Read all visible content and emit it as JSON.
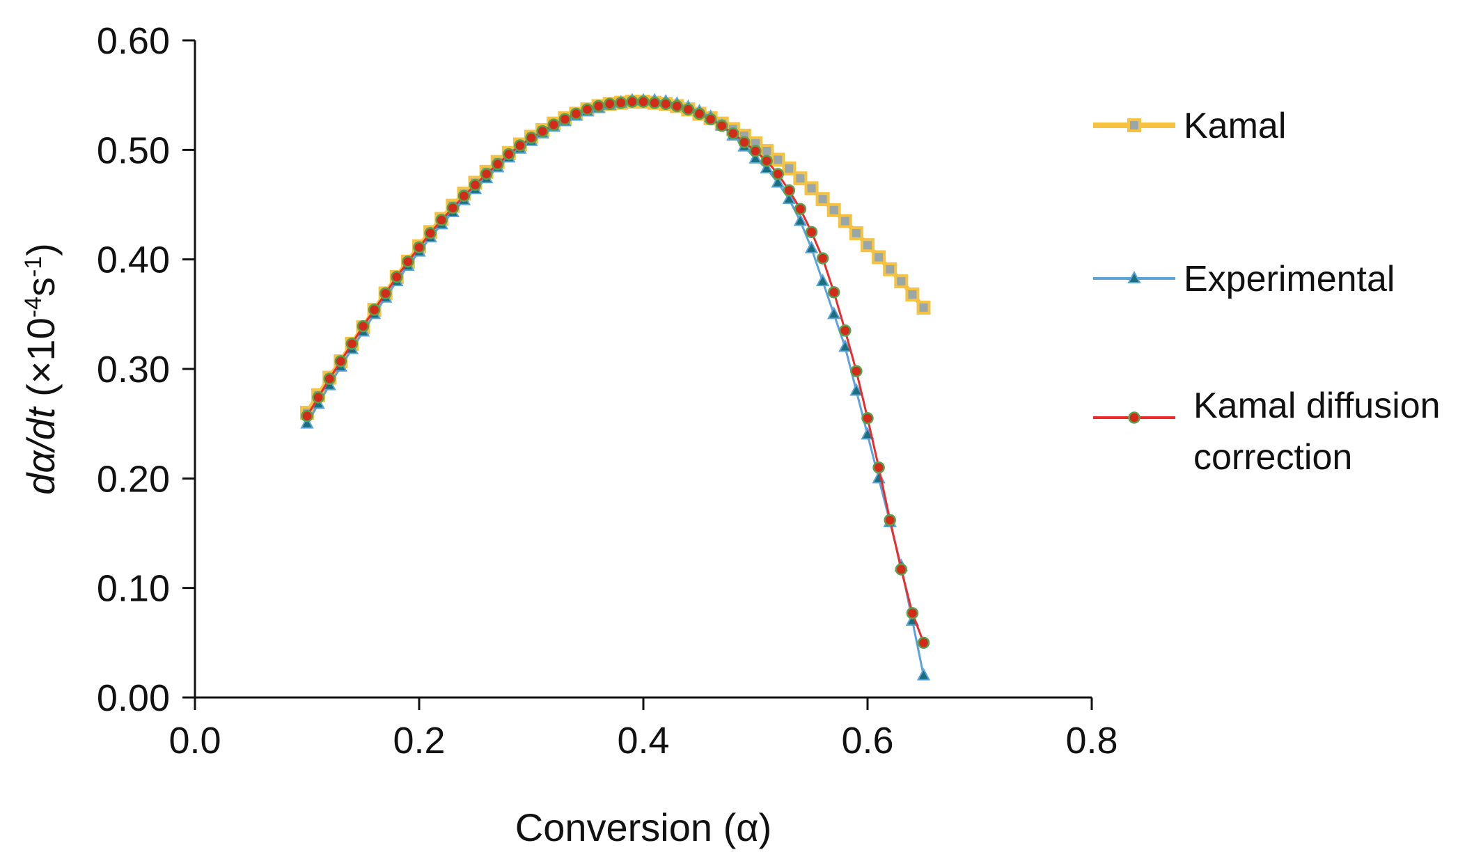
{
  "chart_data": {
    "type": "line",
    "title": "",
    "xlabel": "Conversion (α)",
    "ylabel": {
      "main": "dα/dt",
      "unit_open": " (×10",
      "exp1": "-4",
      "unit_mid": "s",
      "exp2": "-1",
      "unit_close": ")"
    },
    "xlim": [
      0,
      0.8
    ],
    "ylim": [
      0,
      0.6
    ],
    "xticks": [
      0,
      0.2,
      0.4,
      0.6,
      0.8
    ],
    "xtick_labels": [
      "0.0",
      "0.2",
      "0.4",
      "0.6",
      "0.8"
    ],
    "yticks": [
      0,
      0.1,
      0.2,
      0.3,
      0.4,
      0.5,
      0.6
    ],
    "ytick_labels": [
      "0.00",
      "0.10",
      "0.20",
      "0.30",
      "0.40",
      "0.50",
      "0.60"
    ],
    "grid": false,
    "legend_position": "right",
    "series": [
      {
        "name": "Kamal",
        "color": "#f5c242",
        "marker": "square",
        "marker_color": "#9aa7a8",
        "x": [
          0.1,
          0.11,
          0.12,
          0.13,
          0.14,
          0.15,
          0.16,
          0.17,
          0.18,
          0.19,
          0.2,
          0.21,
          0.22,
          0.23,
          0.24,
          0.25,
          0.26,
          0.27,
          0.28,
          0.29,
          0.3,
          0.31,
          0.32,
          0.33,
          0.34,
          0.35,
          0.36,
          0.37,
          0.38,
          0.39,
          0.4,
          0.41,
          0.42,
          0.43,
          0.44,
          0.45,
          0.46,
          0.47,
          0.48,
          0.49,
          0.5,
          0.51,
          0.52,
          0.53,
          0.54,
          0.55,
          0.56,
          0.57,
          0.58,
          0.59,
          0.6,
          0.61,
          0.62,
          0.63,
          0.64,
          0.65
        ],
        "y": [
          0.26,
          0.276,
          0.292,
          0.307,
          0.323,
          0.338,
          0.354,
          0.369,
          0.384,
          0.398,
          0.412,
          0.425,
          0.437,
          0.449,
          0.46,
          0.47,
          0.48,
          0.489,
          0.497,
          0.505,
          0.512,
          0.518,
          0.524,
          0.529,
          0.533,
          0.537,
          0.54,
          0.542,
          0.543,
          0.544,
          0.544,
          0.543,
          0.542,
          0.54,
          0.537,
          0.533,
          0.529,
          0.524,
          0.519,
          0.513,
          0.506,
          0.499,
          0.491,
          0.483,
          0.474,
          0.465,
          0.455,
          0.445,
          0.435,
          0.424,
          0.413,
          0.402,
          0.391,
          0.38,
          0.368,
          0.356
        ]
      },
      {
        "name": "Experimental",
        "color": "#5ba3dc",
        "marker": "triangle",
        "marker_color": "#1a6f7c",
        "x": [
          0.1,
          0.11,
          0.12,
          0.13,
          0.14,
          0.15,
          0.16,
          0.17,
          0.18,
          0.19,
          0.2,
          0.21,
          0.22,
          0.23,
          0.24,
          0.25,
          0.26,
          0.27,
          0.28,
          0.29,
          0.3,
          0.31,
          0.32,
          0.33,
          0.34,
          0.35,
          0.36,
          0.37,
          0.38,
          0.39,
          0.4,
          0.41,
          0.42,
          0.43,
          0.44,
          0.45,
          0.46,
          0.47,
          0.48,
          0.49,
          0.5,
          0.51,
          0.52,
          0.53,
          0.54,
          0.55,
          0.56,
          0.57,
          0.58,
          0.59,
          0.6,
          0.61,
          0.62,
          0.63,
          0.64,
          0.65
        ],
        "y": [
          0.25,
          0.268,
          0.285,
          0.302,
          0.318,
          0.334,
          0.35,
          0.365,
          0.38,
          0.394,
          0.407,
          0.42,
          0.432,
          0.443,
          0.454,
          0.464,
          0.474,
          0.484,
          0.493,
          0.501,
          0.508,
          0.515,
          0.521,
          0.526,
          0.531,
          0.535,
          0.538,
          0.541,
          0.543,
          0.545,
          0.545,
          0.545,
          0.544,
          0.542,
          0.539,
          0.535,
          0.53,
          0.522,
          0.513,
          0.503,
          0.492,
          0.483,
          0.47,
          0.455,
          0.435,
          0.41,
          0.38,
          0.35,
          0.32,
          0.28,
          0.24,
          0.2,
          0.16,
          0.12,
          0.07,
          0.02
        ]
      },
      {
        "name": "Kamal diffusion correction",
        "color": "#ee2b2b",
        "marker": "circle",
        "marker_color": "#d42a1a",
        "x": [
          0.1,
          0.11,
          0.12,
          0.13,
          0.14,
          0.15,
          0.16,
          0.17,
          0.18,
          0.19,
          0.2,
          0.21,
          0.22,
          0.23,
          0.24,
          0.25,
          0.26,
          0.27,
          0.28,
          0.29,
          0.3,
          0.31,
          0.32,
          0.33,
          0.34,
          0.35,
          0.36,
          0.37,
          0.38,
          0.39,
          0.4,
          0.41,
          0.42,
          0.43,
          0.44,
          0.45,
          0.46,
          0.47,
          0.48,
          0.49,
          0.5,
          0.51,
          0.52,
          0.53,
          0.54,
          0.55,
          0.56,
          0.57,
          0.58,
          0.59,
          0.6,
          0.61,
          0.62,
          0.63,
          0.64,
          0.65
        ],
        "y": [
          0.257,
          0.274,
          0.291,
          0.307,
          0.323,
          0.339,
          0.354,
          0.369,
          0.384,
          0.398,
          0.411,
          0.424,
          0.436,
          0.447,
          0.458,
          0.468,
          0.478,
          0.487,
          0.496,
          0.504,
          0.511,
          0.517,
          0.523,
          0.528,
          0.533,
          0.537,
          0.54,
          0.542,
          0.543,
          0.544,
          0.544,
          0.543,
          0.542,
          0.54,
          0.537,
          0.533,
          0.528,
          0.522,
          0.515,
          0.507,
          0.499,
          0.49,
          0.478,
          0.463,
          0.446,
          0.425,
          0.401,
          0.37,
          0.335,
          0.298,
          0.255,
          0.21,
          0.162,
          0.117,
          0.077,
          0.05
        ]
      }
    ],
    "legend": [
      {
        "lines": [
          "Kamal"
        ]
      },
      {
        "lines": [
          "Experimental"
        ]
      },
      {
        "lines": [
          "Kamal diffusion",
          "correction"
        ]
      }
    ]
  }
}
